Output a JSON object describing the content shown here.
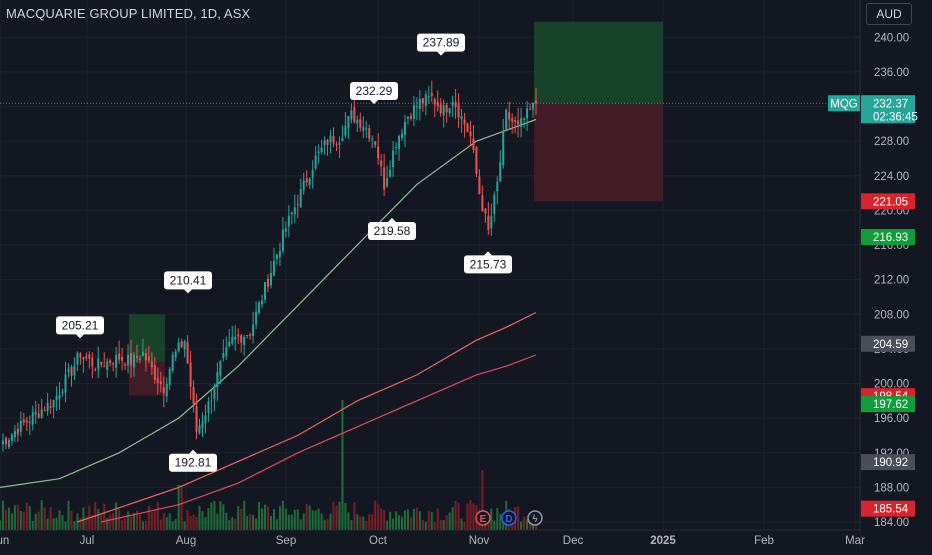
{
  "header": {
    "title": "MACQUARIE GROUP LIMITED, 1D, ASX",
    "currency": "AUD"
  },
  "ticker": {
    "symbol": "MQG",
    "price": "232.37",
    "countdown": "02:36:45"
  },
  "colors": {
    "background": "#131722",
    "up": "#26a69a",
    "down": "#ef5350",
    "volume_up": "#1f6e3a",
    "volume_down": "#7a1f26",
    "ma_short": "#8fbf8f",
    "ma_mid": "#f0645a",
    "ma_long": "#e04a5a",
    "target_zone": "#1a4a2a",
    "stop_zone": "#4a1c26"
  },
  "chart_data": {
    "type": "candlestick",
    "x_ticks": [
      "Jun",
      "Jul",
      "Aug",
      "Sep",
      "Oct",
      "Nov",
      "Dec",
      "2025",
      "Feb",
      "Mar"
    ],
    "y_range": [
      184,
      242
    ],
    "y_ticks": [
      "184.00",
      "188.00",
      "192.00",
      "196.00",
      "200.00",
      "204.00",
      "208.00",
      "212.00",
      "216.00",
      "220.00",
      "224.00",
      "228.00",
      "232.00",
      "236.00",
      "240.00"
    ],
    "price_labels": [
      {
        "value": 232.38,
        "text": "232.38",
        "style": "gray"
      },
      {
        "value": 221.05,
        "text": "221.05",
        "style": "red"
      },
      {
        "value": 216.93,
        "text": "216.93",
        "style": "green"
      },
      {
        "value": 204.59,
        "text": "204.59",
        "style": "gray"
      },
      {
        "value": 198.54,
        "text": "198.54",
        "style": "red"
      },
      {
        "value": 197.62,
        "text": "197.62",
        "style": "green"
      },
      {
        "value": 190.92,
        "text": "190.92",
        "style": "gray"
      },
      {
        "value": 185.54,
        "text": "185.54",
        "style": "red"
      }
    ],
    "annotations": [
      {
        "text": "205.21",
        "value": 205.21,
        "date_index": 26,
        "kind": "high"
      },
      {
        "text": "210.41",
        "value": 210.41,
        "date_index": 62,
        "kind": "high"
      },
      {
        "text": "192.81",
        "value": 192.81,
        "date_index": 66,
        "kind": "low"
      },
      {
        "text": "232.29",
        "value": 232.29,
        "date_index": 124,
        "kind": "high"
      },
      {
        "text": "219.58",
        "value": 219.58,
        "date_index": 130,
        "kind": "low"
      },
      {
        "text": "237.89",
        "value": 237.89,
        "date_index": 146,
        "kind": "high"
      },
      {
        "text": "215.73",
        "value": 215.73,
        "date_index": 163,
        "kind": "low"
      }
    ],
    "anchors": [
      {
        "i": 0,
        "v": 193.0
      },
      {
        "i": 5,
        "v": 194.5
      },
      {
        "i": 12,
        "v": 196.5
      },
      {
        "i": 18,
        "v": 198.0
      },
      {
        "i": 24,
        "v": 201.5
      },
      {
        "i": 27,
        "v": 203.5
      },
      {
        "i": 32,
        "v": 202.0
      },
      {
        "i": 40,
        "v": 203.0
      },
      {
        "i": 44,
        "v": 202.5
      },
      {
        "i": 48,
        "v": 203.5
      },
      {
        "i": 52,
        "v": 201.0
      },
      {
        "i": 55,
        "v": 199.5
      },
      {
        "i": 58,
        "v": 203.0
      },
      {
        "i": 62,
        "v": 205.0
      },
      {
        "i": 66,
        "v": 194.5
      },
      {
        "i": 70,
        "v": 197.5
      },
      {
        "i": 74,
        "v": 202.0
      },
      {
        "i": 78,
        "v": 205.0
      },
      {
        "i": 84,
        "v": 206.0
      },
      {
        "i": 90,
        "v": 212.0
      },
      {
        "i": 96,
        "v": 218.0
      },
      {
        "i": 101,
        "v": 222.0
      },
      {
        "i": 106,
        "v": 226.0
      },
      {
        "i": 110,
        "v": 228.0
      },
      {
        "i": 114,
        "v": 228.5
      },
      {
        "i": 118,
        "v": 231.0
      },
      {
        "i": 122,
        "v": 230.0
      },
      {
        "i": 126,
        "v": 228.0
      },
      {
        "i": 129,
        "v": 223.0
      },
      {
        "i": 133,
        "v": 228.0
      },
      {
        "i": 137,
        "v": 231.0
      },
      {
        "i": 141,
        "v": 232.5
      },
      {
        "i": 145,
        "v": 233.0
      },
      {
        "i": 149,
        "v": 231.5
      },
      {
        "i": 152,
        "v": 233.0
      },
      {
        "i": 156,
        "v": 230.0
      },
      {
        "i": 158,
        "v": 228.5
      },
      {
        "i": 161,
        "v": 222.0
      },
      {
        "i": 164,
        "v": 217.5
      },
      {
        "i": 167,
        "v": 223.0
      },
      {
        "i": 170,
        "v": 231.0
      },
      {
        "i": 174,
        "v": 229.5
      },
      {
        "i": 178,
        "v": 231.5
      },
      {
        "i": 180,
        "v": 232.37
      }
    ],
    "total_days": 181,
    "ma_short": [
      [
        0,
        188.0
      ],
      [
        20,
        189.0
      ],
      [
        40,
        192.0
      ],
      [
        60,
        196.0
      ],
      [
        80,
        202.0
      ],
      [
        100,
        209.0
      ],
      [
        120,
        216.0
      ],
      [
        140,
        223.0
      ],
      [
        160,
        228.0
      ],
      [
        180,
        230.5
      ]
    ],
    "ma_mid": [
      [
        26,
        184.0
      ],
      [
        60,
        188.0
      ],
      [
        80,
        191.0
      ],
      [
        100,
        194.0
      ],
      [
        120,
        198.0
      ],
      [
        140,
        201.0
      ],
      [
        160,
        205.0
      ],
      [
        170,
        206.5
      ],
      [
        180,
        208.2
      ]
    ],
    "ma_long": [
      [
        34,
        184.0
      ],
      [
        60,
        186.0
      ],
      [
        80,
        188.5
      ],
      [
        100,
        192.0
      ],
      [
        120,
        195.0
      ],
      [
        140,
        198.0
      ],
      [
        160,
        201.0
      ],
      [
        170,
        202.0
      ],
      [
        180,
        203.3
      ]
    ],
    "position_small": {
      "entry": 202.5,
      "target": 208.0,
      "stop": 198.6,
      "start_index": 51,
      "end_index": 59
    },
    "position_large": {
      "entry": 232.38,
      "target": 241.8,
      "stop": 221.05,
      "start_index": 180,
      "end_index": 225
    },
    "markers": [
      {
        "label": "E",
        "color": "#ef5350"
      },
      {
        "label": "D",
        "color": "#2962ff"
      },
      {
        "label": "ϟ",
        "color": "#9598a1"
      }
    ]
  }
}
